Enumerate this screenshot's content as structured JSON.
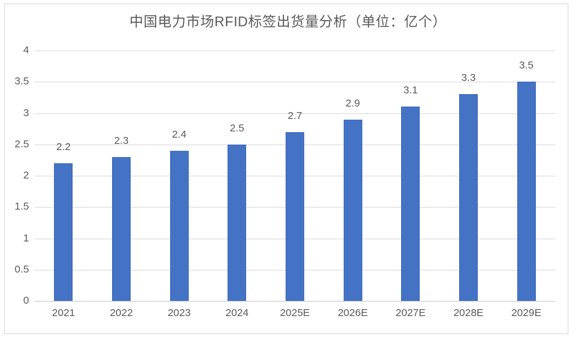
{
  "chart_data": {
    "type": "bar",
    "title": "中国电力市场RFID标签出货量分析（单位：亿个）",
    "categories": [
      "2021",
      "2022",
      "2023",
      "2024",
      "2025E",
      "2026E",
      "2027E",
      "2028E",
      "2029E"
    ],
    "values": [
      2.2,
      2.3,
      2.4,
      2.5,
      2.7,
      2.9,
      3.1,
      3.3,
      3.5
    ],
    "value_labels": [
      "2.2",
      "2.3",
      "2.4",
      "2.5",
      "2.7",
      "2.9",
      "3.1",
      "3.3",
      "3.5"
    ],
    "xlabel": "",
    "ylabel": "",
    "ylim": [
      0,
      4
    ],
    "ytick_step": 0.5,
    "ytick_labels": [
      "0",
      "0.5",
      "1",
      "1.5",
      "2",
      "2.5",
      "3",
      "3.5",
      "4"
    ],
    "grid": "horizontal",
    "legend": "none",
    "colors": {
      "bar": "#4472c4",
      "gridline": "#dcdcdc",
      "axis_line": "#c9c9c9",
      "text": "#595959",
      "chart_border": "#d9d9d9",
      "background": "#ffffff"
    }
  }
}
